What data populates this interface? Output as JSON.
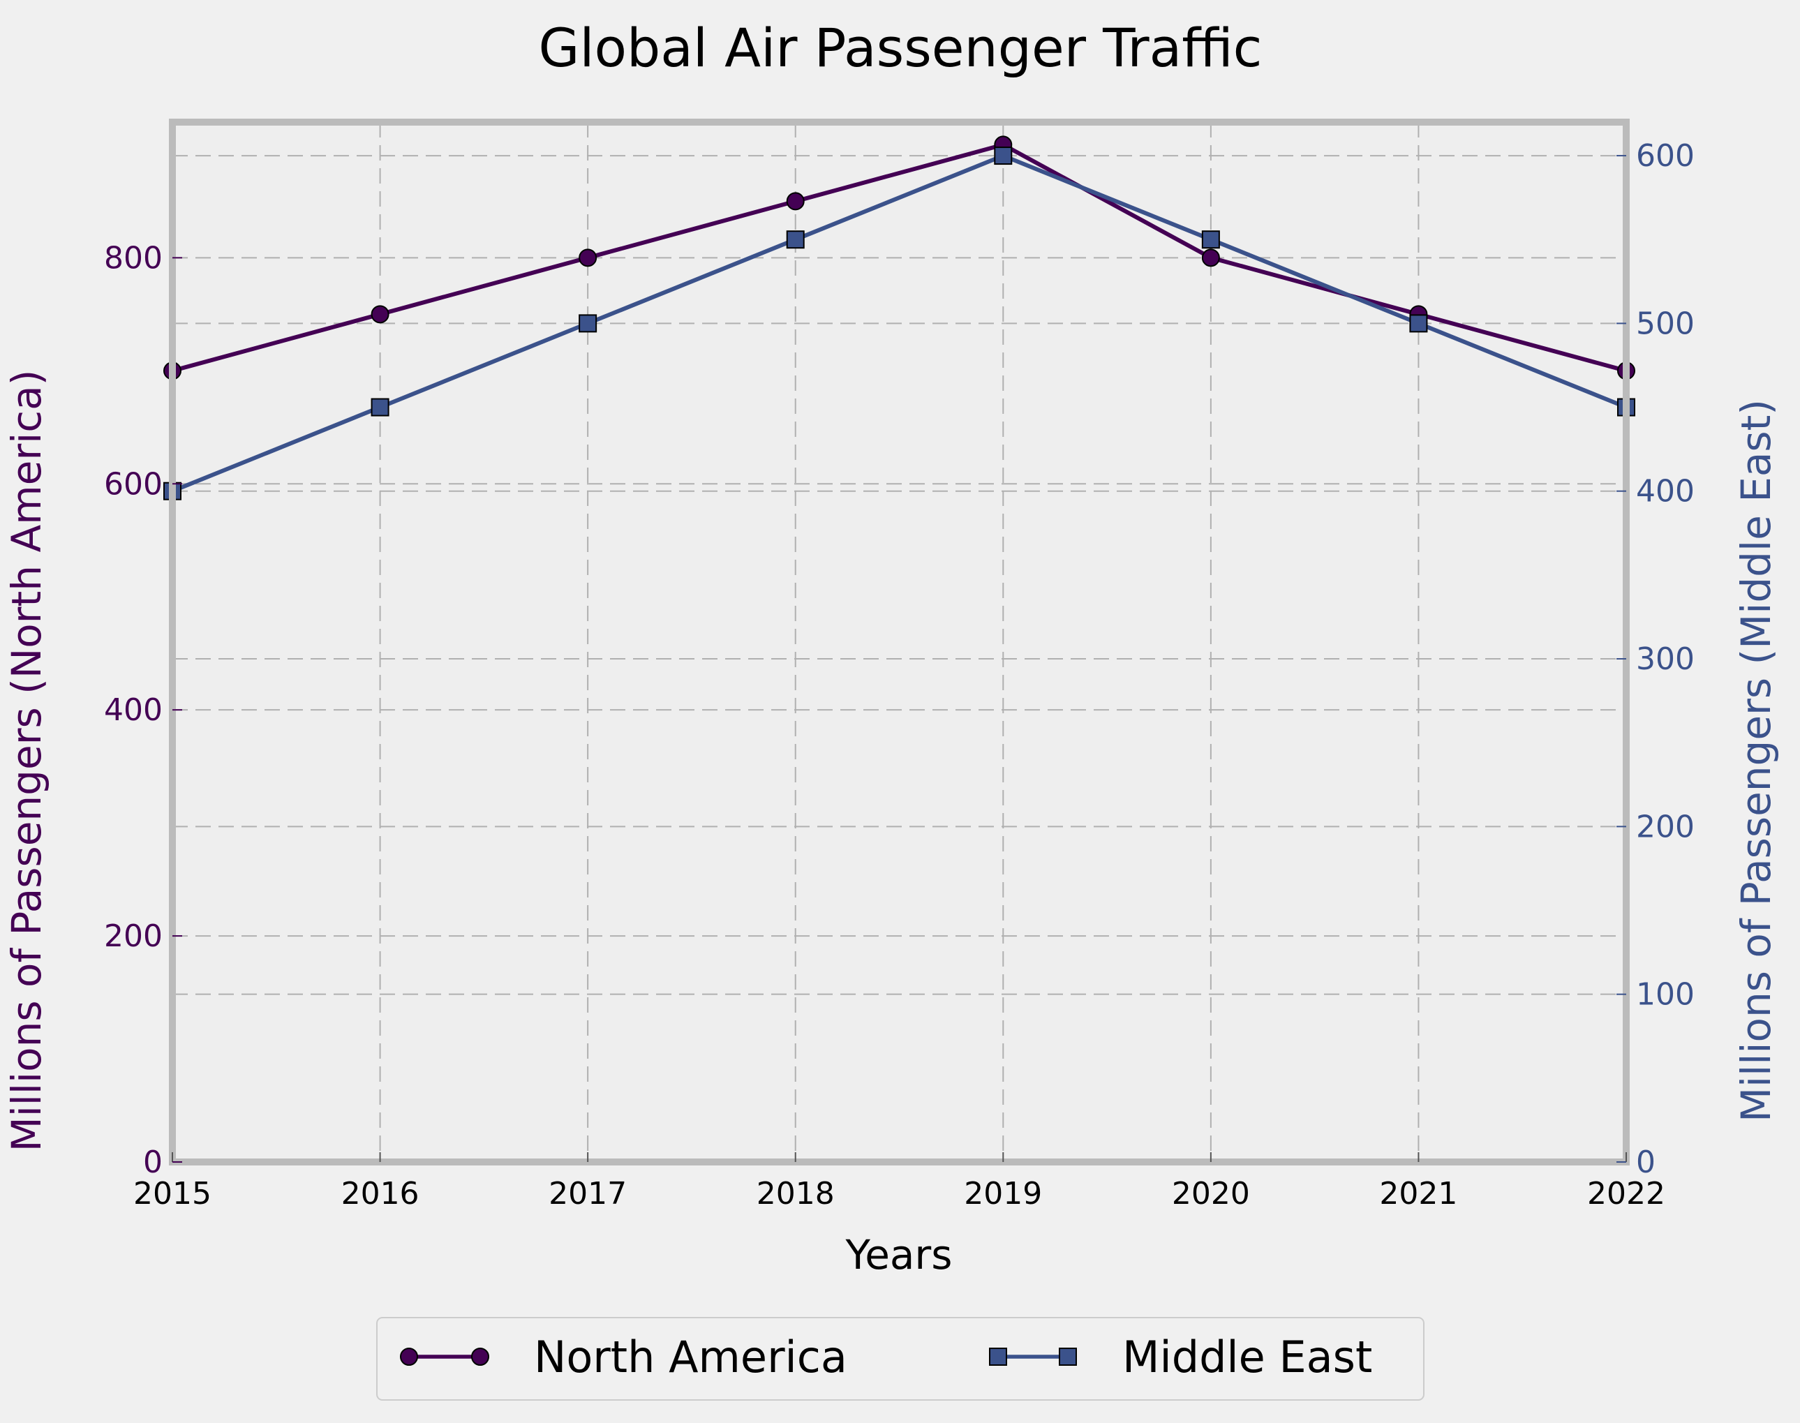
{
  "chart_data": {
    "type": "line",
    "title": "Global Air Passenger Traffic",
    "xlabel": "Years",
    "ylabel_left": "Millions of Passengers (North America)",
    "ylabel_right": "Millions of Passengers (Middle East)",
    "x": [
      2015,
      2016,
      2017,
      2018,
      2019,
      2020,
      2021,
      2022
    ],
    "xlim": [
      2015,
      2022
    ],
    "ylim_left": [
      0,
      920
    ],
    "ylim_right": [
      0,
      620
    ],
    "yticks_left": [
      0,
      200,
      400,
      600,
      800
    ],
    "yticks_right": [
      0,
      100,
      200,
      300,
      400,
      500,
      600
    ],
    "grid": true,
    "legend_position": "bottom-center",
    "series": [
      {
        "name": "North America",
        "axis": "left",
        "marker": "circle",
        "color": "#440154",
        "values": [
          700,
          750,
          800,
          850,
          900,
          800,
          750,
          700
        ]
      },
      {
        "name": "Middle East",
        "axis": "right",
        "marker": "square",
        "color": "#3b528b",
        "values": [
          400,
          450,
          500,
          550,
          600,
          550,
          500,
          450
        ]
      }
    ],
    "colors": {
      "background": "#f0f0f0",
      "plot_background": "#eeeeee",
      "frame": "#bbbbbb",
      "grid": "#b0b0b0",
      "left_axis": "#440154",
      "right_axis": "#3b528b"
    }
  }
}
